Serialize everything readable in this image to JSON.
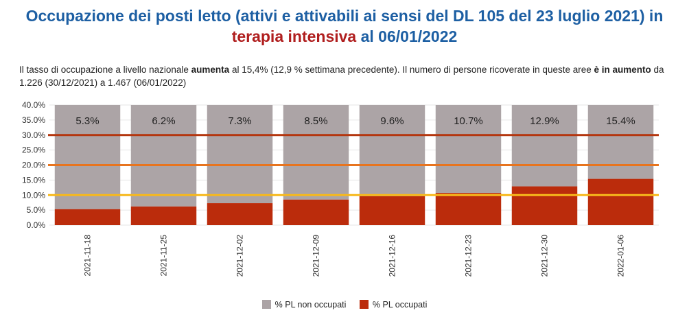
{
  "title": {
    "line1": "Occupazione dei posti letto (attivi e attivabili ai sensi del DL 105 del 23 luglio 2021) in",
    "line2_highlight": "terapia intensiva",
    "line2_rest": " al 06/01/2022"
  },
  "description": {
    "p1": "Il tasso di occupazione a livello nazionale ",
    "b1": "aumenta",
    "p2": " al 15,4% (12,9 % settimana precedente). Il numero di persone ricoverate in queste aree ",
    "b2": "è in aumento",
    "p3": " da 1.226 (30/12/2021) a 1.467 (06/01/2022)"
  },
  "colors": {
    "title_blue": "#1d5fa3",
    "title_red": "#b01e1e",
    "non_occupati": "#aca4a6",
    "occupati": "#bb2c0c",
    "line_30": "#b4360f",
    "line_20": "#e8741e",
    "line_10": "#f7b81b",
    "grid": "#e6e6e6"
  },
  "chart_data": {
    "type": "bar",
    "stacked": true,
    "categories": [
      "2021-11-18",
      "2021-11-25",
      "2021-12-02",
      "2021-12-09",
      "2021-12-16",
      "2021-12-23",
      "2021-12-30",
      "2022-01-06"
    ],
    "series": [
      {
        "name": "% PL occupati",
        "values": [
          5.3,
          6.2,
          7.3,
          8.5,
          9.6,
          10.7,
          12.9,
          15.4
        ]
      },
      {
        "name": "% PL non occupati",
        "values": [
          34.7,
          33.8,
          32.7,
          31.5,
          30.4,
          29.3,
          27.1,
          24.6
        ]
      }
    ],
    "data_labels": [
      "5.3%",
      "6.2%",
      "7.3%",
      "8.5%",
      "9.6%",
      "10.7%",
      "12.9%",
      "15.4%"
    ],
    "y_ticks": [
      "0.0%",
      "5.0%",
      "10.0%",
      "15.0%",
      "20.0%",
      "25.0%",
      "30.0%",
      "35.0%",
      "40.0%"
    ],
    "ylim": [
      0,
      40
    ],
    "threshold_lines": [
      30,
      20,
      10
    ],
    "grid": true,
    "legend_position": "bottom",
    "legend": [
      "% PL non occupati",
      "% PL occupati"
    ]
  }
}
